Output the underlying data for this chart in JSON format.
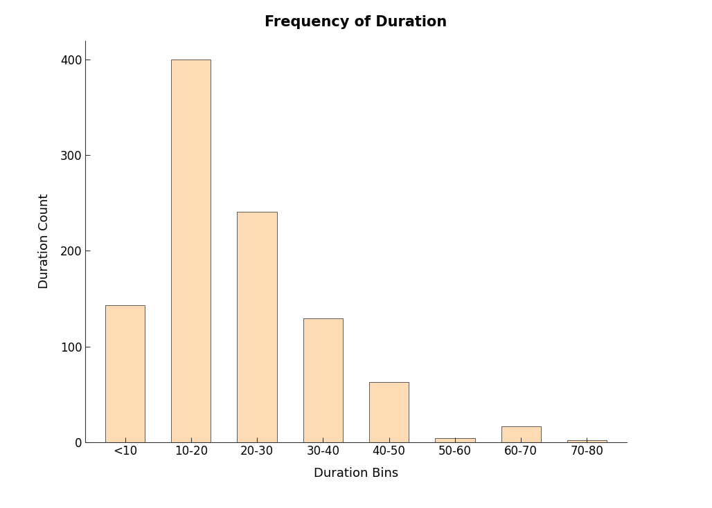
{
  "categories": [
    "<10",
    "10-20",
    "20-30",
    "30-40",
    "40-50",
    "50-60",
    "60-70",
    "70-80"
  ],
  "values": [
    143,
    400,
    241,
    129,
    63,
    4,
    16,
    2
  ],
  "bar_color": "#FDDCB5",
  "bar_edgecolor": "#5a5a5a",
  "title": "Frequency of Duration",
  "xlabel": "Duration Bins",
  "ylabel": "Duration Count",
  "ylim": [
    0,
    420
  ],
  "yticks": [
    0,
    100,
    200,
    300,
    400
  ],
  "title_fontsize": 15,
  "axis_label_fontsize": 13,
  "tick_fontsize": 12,
  "background_color": "#ffffff",
  "bar_width": 0.6
}
